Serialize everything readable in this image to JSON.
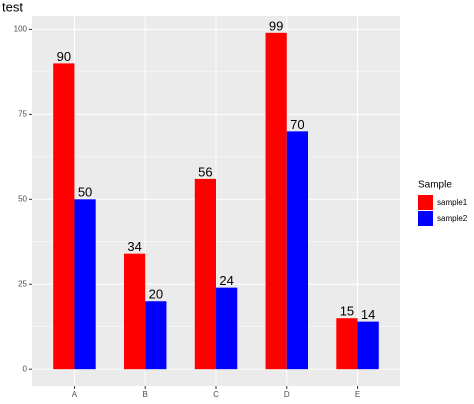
{
  "chart_data": {
    "type": "bar",
    "title": "test",
    "categories": [
      "A",
      "B",
      "C",
      "D",
      "E"
    ],
    "series": [
      {
        "name": "sample1",
        "color": "#ff0000",
        "values": [
          90,
          34,
          56,
          99,
          15
        ]
      },
      {
        "name": "sample2",
        "color": "#0000ff",
        "values": [
          50,
          20,
          24,
          70,
          14
        ]
      }
    ],
    "legend_title": "Sample",
    "legend_position": "right",
    "ylim": [
      -4.95,
      103.95
    ],
    "yticks": [
      0,
      25,
      50,
      75,
      100
    ],
    "grid": true
  }
}
